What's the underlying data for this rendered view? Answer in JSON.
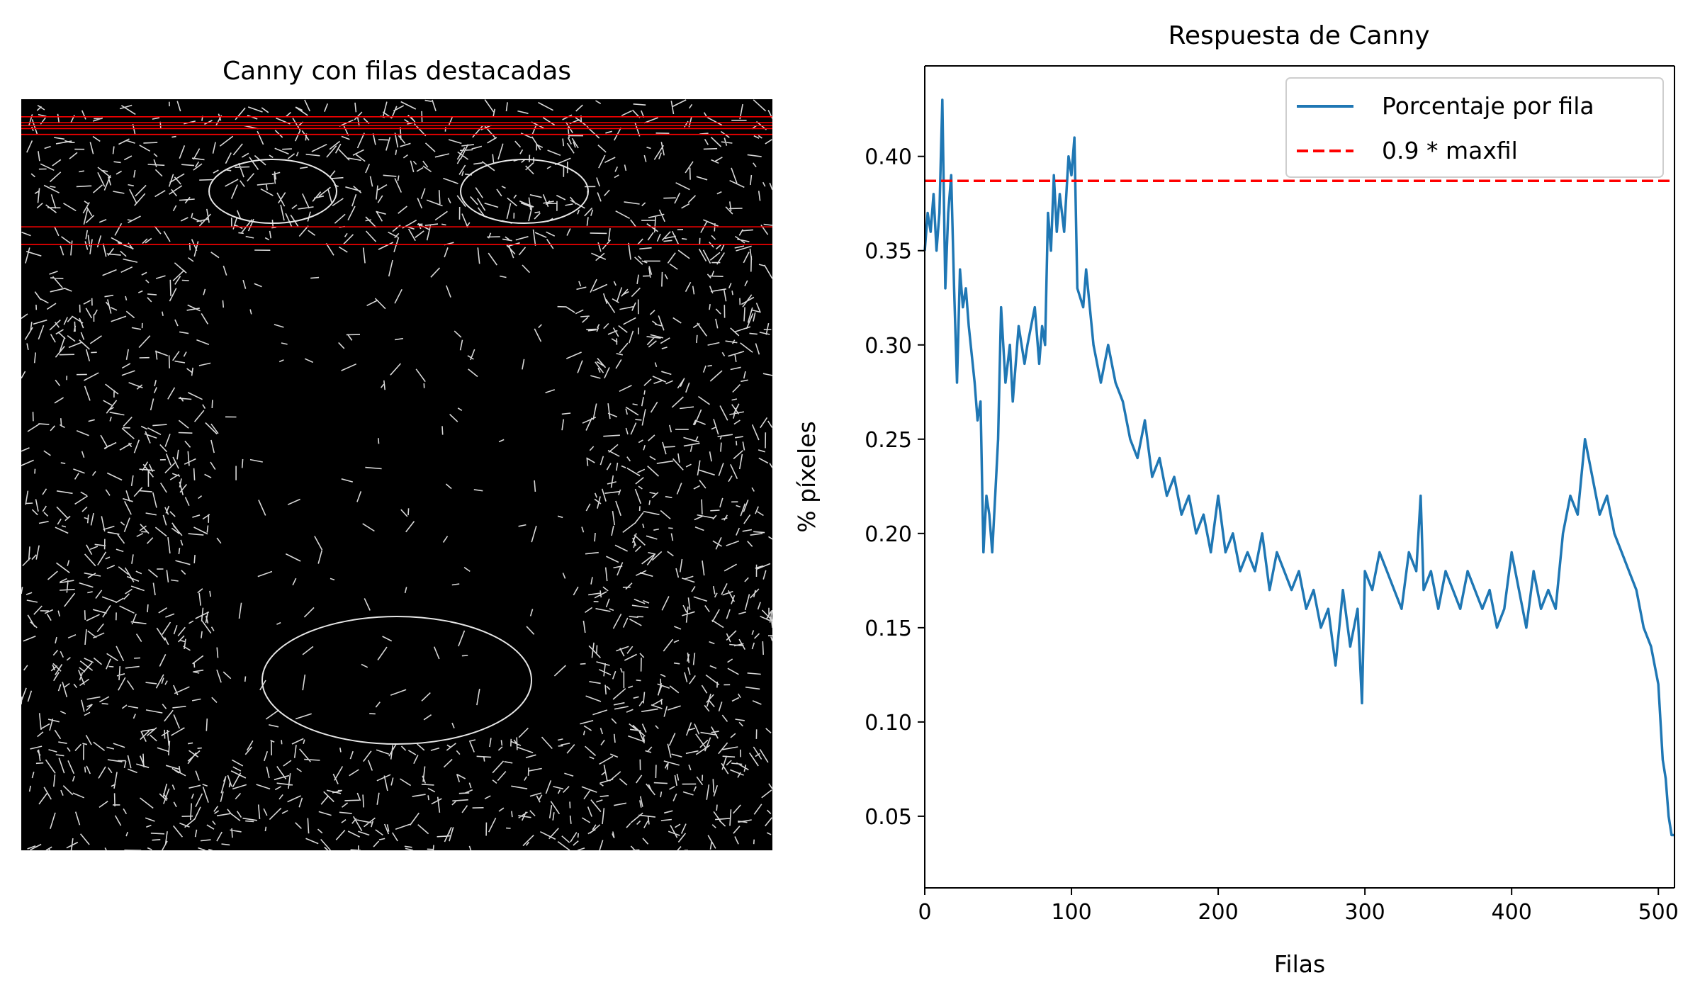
{
  "left_panel": {
    "title": "Canny con filas destacadas",
    "image_description_name": "canny-edge-image",
    "highlight_color": "#ff0000",
    "highlighted_rows": [
      12,
      16,
      18,
      20,
      24,
      87,
      99
    ]
  },
  "chart_data": {
    "type": "line",
    "title": "Respuesta de Canny",
    "xlabel": "Filas",
    "ylabel": "% píxeles",
    "xlim": [
      0,
      511
    ],
    "ylim": [
      0.012,
      0.448
    ],
    "xticks": [
      0,
      100,
      200,
      300,
      400,
      500
    ],
    "yticks": [
      0.05,
      0.1,
      0.15,
      0.2,
      0.25,
      0.3,
      0.35,
      0.4
    ],
    "ytick_labels": [
      "0.05",
      "0.10",
      "0.15",
      "0.20",
      "0.25",
      "0.30",
      "0.35",
      "0.40"
    ],
    "grid": false,
    "legend_position": "top-right",
    "series": [
      {
        "name": "Porcentaje por fila",
        "color": "#1f77b4",
        "style": "solid",
        "x": [
          0,
          2,
          4,
          6,
          8,
          10,
          12,
          13,
          14,
          16,
          18,
          20,
          22,
          24,
          26,
          28,
          30,
          34,
          36,
          38,
          40,
          42,
          44,
          46,
          48,
          50,
          52,
          55,
          58,
          60,
          64,
          68,
          70,
          75,
          78,
          80,
          82,
          84,
          86,
          88,
          90,
          92,
          95,
          98,
          100,
          102,
          104,
          108,
          110,
          115,
          120,
          125,
          130,
          135,
          140,
          145,
          150,
          155,
          160,
          165,
          170,
          175,
          180,
          185,
          190,
          195,
          200,
          205,
          210,
          215,
          220,
          225,
          230,
          235,
          240,
          245,
          250,
          255,
          260,
          265,
          270,
          275,
          280,
          285,
          290,
          295,
          298,
          300,
          305,
          310,
          315,
          320,
          325,
          330,
          335,
          338,
          340,
          345,
          350,
          355,
          360,
          365,
          370,
          375,
          380,
          385,
          390,
          395,
          400,
          405,
          410,
          415,
          420,
          425,
          430,
          435,
          440,
          445,
          450,
          455,
          460,
          465,
          470,
          475,
          480,
          485,
          490,
          495,
          500,
          503,
          505,
          507,
          509,
          511
        ],
        "values": [
          0.35,
          0.37,
          0.36,
          0.38,
          0.35,
          0.37,
          0.43,
          0.38,
          0.33,
          0.37,
          0.39,
          0.33,
          0.28,
          0.34,
          0.32,
          0.33,
          0.31,
          0.28,
          0.26,
          0.27,
          0.19,
          0.22,
          0.21,
          0.19,
          0.22,
          0.25,
          0.32,
          0.28,
          0.3,
          0.27,
          0.31,
          0.29,
          0.3,
          0.32,
          0.29,
          0.31,
          0.3,
          0.37,
          0.35,
          0.39,
          0.36,
          0.38,
          0.36,
          0.4,
          0.39,
          0.41,
          0.33,
          0.32,
          0.34,
          0.3,
          0.28,
          0.3,
          0.28,
          0.27,
          0.25,
          0.24,
          0.26,
          0.23,
          0.24,
          0.22,
          0.23,
          0.21,
          0.22,
          0.2,
          0.21,
          0.19,
          0.22,
          0.19,
          0.2,
          0.18,
          0.19,
          0.18,
          0.2,
          0.17,
          0.19,
          0.18,
          0.17,
          0.18,
          0.16,
          0.17,
          0.15,
          0.16,
          0.13,
          0.17,
          0.14,
          0.16,
          0.11,
          0.18,
          0.17,
          0.19,
          0.18,
          0.17,
          0.16,
          0.19,
          0.18,
          0.22,
          0.17,
          0.18,
          0.16,
          0.18,
          0.17,
          0.16,
          0.18,
          0.17,
          0.16,
          0.17,
          0.15,
          0.16,
          0.19,
          0.17,
          0.15,
          0.18,
          0.16,
          0.17,
          0.16,
          0.2,
          0.22,
          0.21,
          0.25,
          0.23,
          0.21,
          0.22,
          0.2,
          0.19,
          0.18,
          0.17,
          0.15,
          0.14,
          0.12,
          0.08,
          0.07,
          0.05,
          0.04,
          0.04
        ]
      },
      {
        "name": "0.9 * maxfil",
        "color": "#ff0000",
        "style": "dashed",
        "y_constant": 0.387
      }
    ]
  }
}
